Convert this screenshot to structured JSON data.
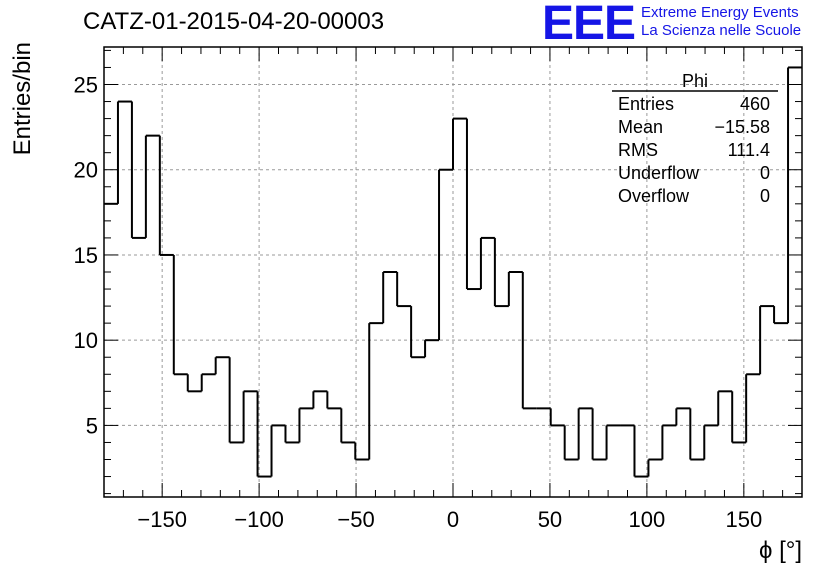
{
  "header": {
    "title": "CATZ-01-2015-04-20-00003",
    "logo_mark": "EEE",
    "logo_line1": "Extreme Energy Events",
    "logo_line2": "La Scienza nelle Scuole"
  },
  "colors": {
    "logo": "#1515e6",
    "grid": "#9a9a9a",
    "line": "#000000"
  },
  "stats": {
    "name": "Phi",
    "rows": [
      {
        "label": "Entries",
        "value": "460"
      },
      {
        "label": "Mean",
        "value": "−15.58"
      },
      {
        "label": "RMS",
        "value": "111.4"
      },
      {
        "label": "Underflow",
        "value": "0"
      },
      {
        "label": "Overflow",
        "value": "0"
      }
    ]
  },
  "chart_data": {
    "type": "histogram",
    "xlabel": "ϕ [°]",
    "ylabel": "Entries/bin",
    "xlim": [
      -180,
      180
    ],
    "ylim": [
      0.8,
      27.2
    ],
    "bin_edges_start": -180,
    "bin_width": 7.2,
    "values": [
      18,
      24,
      16,
      22,
      15,
      8,
      7,
      8,
      9,
      4,
      7,
      2,
      5,
      4,
      6,
      7,
      6,
      4,
      3,
      11,
      14,
      12,
      9,
      10,
      20,
      23,
      13,
      16,
      12,
      14,
      6,
      6,
      5,
      3,
      6,
      3,
      5,
      5,
      2,
      3,
      5,
      6,
      3,
      5,
      7,
      4,
      8,
      12,
      11,
      26
    ],
    "xticks": [
      -150,
      -100,
      -50,
      0,
      50,
      100,
      150
    ],
    "xtick_labels": [
      "−150",
      "−100",
      "−50",
      "0",
      "50",
      "100",
      "150"
    ],
    "yticks": [
      5,
      10,
      15,
      20,
      25
    ],
    "ytick_labels": [
      "5",
      "10",
      "15",
      "20",
      "25"
    ],
    "grid": true
  }
}
